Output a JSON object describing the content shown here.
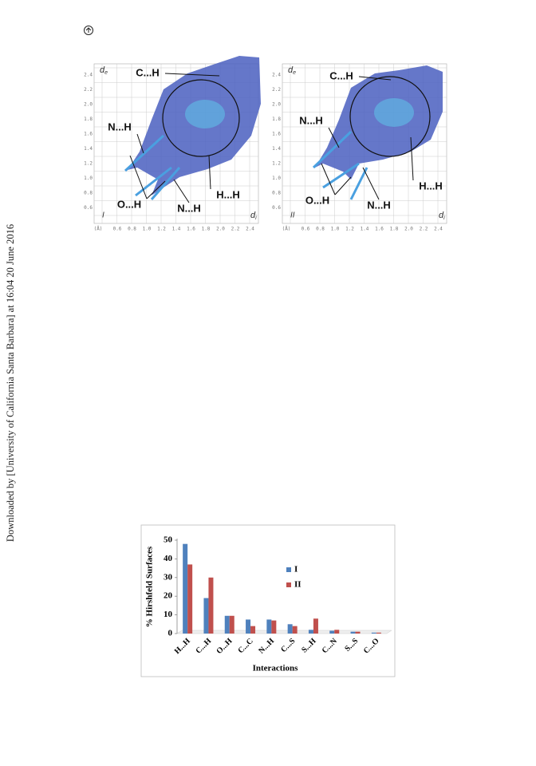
{
  "sidebar": "Downloaded by [University of California Santa Barbara] at 16:04 20 June 2016",
  "fingerprints": [
    {
      "panel": "I",
      "y_axis": {
        "main": "d",
        "sub": "e"
      },
      "x_axis": {
        "main": "d",
        "sub": "i"
      },
      "y_ticks": [
        "2.4",
        "2.2",
        "2.0",
        "1.8",
        "1.6",
        "1.4",
        "1.2",
        "1.0",
        "0.8",
        "0.6"
      ],
      "x_unit": "(Å)",
      "x_ticks": [
        "0.6",
        "0.8",
        "1.0",
        "1.2",
        "1.4",
        "1.6",
        "1.8",
        "2.0",
        "2.2",
        "2.4"
      ],
      "labels": [
        "C...H",
        "N...H",
        "O...H",
        "N...H",
        "H...H"
      ]
    },
    {
      "panel": "II",
      "y_axis": {
        "main": "d",
        "sub": "e"
      },
      "x_axis": {
        "main": "d",
        "sub": "i"
      },
      "y_ticks": [
        "2.4",
        "2.2",
        "2.0",
        "1.8",
        "1.6",
        "1.4",
        "1.2",
        "1.0",
        "0.8",
        "0.6"
      ],
      "x_unit": "(Å)",
      "x_ticks": [
        "0.6",
        "0.8",
        "1.0",
        "1.2",
        "1.4",
        "1.6",
        "1.8",
        "2.0",
        "2.2",
        "2.4"
      ],
      "labels": [
        "C...H",
        "N...H",
        "O...H",
        "N...H",
        "H...H"
      ]
    }
  ],
  "chart_data": {
    "type": "bar",
    "y_label": "% Hirshfeld Surfaces",
    "x_label": "Interactions",
    "categories": [
      "H...H",
      "C...H",
      "O...H",
      "C...C",
      "N...H",
      "C...S",
      "S...H",
      "C...N",
      "S...S",
      "C...O"
    ],
    "series": [
      {
        "name": "I",
        "color": "#4f81bd",
        "values": [
          48,
          19,
          9.5,
          7.5,
          7.5,
          5,
          2,
          1.5,
          1,
          0.5
        ]
      },
      {
        "name": "II",
        "color": "#c0504d",
        "values": [
          37,
          30,
          9.5,
          4,
          7,
          4,
          8,
          2,
          1,
          0.5
        ]
      }
    ],
    "ylim": [
      0,
      50
    ],
    "yticks": [
      0,
      10,
      20,
      30,
      40,
      50
    ]
  }
}
